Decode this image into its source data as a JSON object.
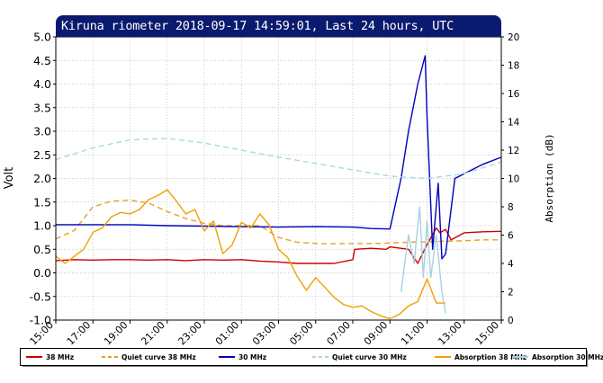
{
  "title": "Kiruna riometer 2018-09-17 14:59:01, Last 24 hours, UTC",
  "chart_data": {
    "type": "line",
    "ylabel": "Volt",
    "ylabel_right": "Absorption (dB)",
    "ylim": [
      -1.0,
      5.0
    ],
    "ylim_right": [
      0,
      20
    ],
    "xlim": [
      15.0,
      39.0
    ],
    "grid": true,
    "y_ticks": [
      "5.0",
      "4.5",
      "4.0",
      "3.5",
      "3.0",
      "2.5",
      "2.0",
      "1.5",
      "1.0",
      "0.5",
      "0.0",
      "-0.5",
      "-1.0"
    ],
    "y_right_ticks": [
      "20",
      "18",
      "16",
      "14",
      "12",
      "10",
      "8",
      "6",
      "4",
      "2",
      "0"
    ],
    "x_ticks": [
      "15:00",
      "17:00",
      "19:00",
      "21:00",
      "23:00",
      "01:00",
      "03:00",
      "05:00",
      "07:00",
      "09:00",
      "11:00",
      "13:00",
      "15:00"
    ],
    "series": [
      {
        "name": "38 MHz",
        "color": "#cc0000",
        "style": "solid",
        "axis": "left",
        "x": [
          15.0,
          16.0,
          17.0,
          18.0,
          19.0,
          20.0,
          21.0,
          22.0,
          23.0,
          24.0,
          25.0,
          26.0,
          27.0,
          28.0,
          29.0,
          30.0,
          31.0,
          31.1,
          32.0,
          32.8,
          33.0,
          34.0,
          34.5,
          35.0,
          35.5,
          35.7,
          36.0,
          36.3,
          37.0,
          38.0,
          39.0
        ],
        "values": [
          0.26,
          0.28,
          0.27,
          0.28,
          0.28,
          0.27,
          0.28,
          0.26,
          0.28,
          0.27,
          0.28,
          0.25,
          0.23,
          0.2,
          0.2,
          0.2,
          0.28,
          0.5,
          0.52,
          0.5,
          0.55,
          0.5,
          0.2,
          0.6,
          0.95,
          0.85,
          0.92,
          0.7,
          0.85,
          0.87,
          0.88
        ]
      },
      {
        "name": "Quiet curve 38 MHz",
        "color": "#e8a020",
        "style": "dashed",
        "axis": "left",
        "x": [
          15.0,
          16.0,
          17.0,
          18.0,
          19.0,
          20.0,
          21.0,
          22.0,
          23.0,
          24.0,
          25.0,
          26.0,
          27.0,
          28.0,
          29.0,
          30.0,
          31.0,
          32.0,
          33.0,
          34.0,
          35.0,
          36.0,
          37.0,
          38.0,
          39.0
        ],
        "values": [
          0.72,
          0.9,
          1.4,
          1.52,
          1.54,
          1.48,
          1.3,
          1.15,
          1.05,
          1.0,
          1.0,
          1.0,
          0.75,
          0.65,
          0.62,
          0.62,
          0.62,
          0.62,
          0.63,
          0.65,
          0.66,
          0.67,
          0.68,
          0.7,
          0.7
        ]
      },
      {
        "name": "30 MHz",
        "color": "#0000bb",
        "style": "solid",
        "axis": "left",
        "x": [
          15.0,
          17.0,
          19.0,
          21.0,
          23.0,
          25.0,
          27.0,
          29.0,
          31.0,
          32.0,
          33.0,
          33.6,
          34.0,
          34.5,
          34.9,
          35.0,
          35.3,
          35.6,
          35.8,
          36.0,
          36.5,
          37.0,
          38.0,
          39.0
        ],
        "values": [
          1.02,
          1.02,
          1.02,
          1.0,
          0.99,
          0.98,
          0.97,
          0.98,
          0.97,
          0.94,
          0.93,
          2.0,
          3.0,
          4.0,
          4.6,
          3.3,
          0.5,
          1.9,
          0.3,
          0.4,
          2.0,
          2.1,
          2.3,
          2.45
        ]
      },
      {
        "name": "Quiet curve 30 MHz",
        "color": "#a8d8e8",
        "style": "dashed",
        "axis": "left",
        "x": [
          15.0,
          17.0,
          19.0,
          21.0,
          23.0,
          25.0,
          27.0,
          29.0,
          31.0,
          33.0,
          35.0,
          37.0,
          39.0
        ],
        "values": [
          2.4,
          2.65,
          2.82,
          2.85,
          2.75,
          2.6,
          2.45,
          2.32,
          2.18,
          2.05,
          2.0,
          2.1,
          2.35
        ]
      },
      {
        "name": "Absorption 38 MHz",
        "color": "#f0a000",
        "style": "solid",
        "axis": "right",
        "x": [
          15.0,
          15.5,
          16.0,
          16.5,
          17.0,
          17.5,
          18.0,
          18.5,
          19.0,
          19.5,
          20.0,
          20.5,
          21.0,
          21.5,
          22.0,
          22.5,
          23.0,
          23.5,
          24.0,
          24.5,
          25.0,
          25.5,
          26.0,
          26.5,
          27.0,
          27.5,
          28.0,
          28.5,
          29.0,
          29.5,
          30.0,
          30.5,
          31.0,
          31.5,
          32.0,
          32.5,
          33.0,
          33.5,
          34.0,
          34.5,
          35.0,
          35.5,
          36.0
        ],
        "values": [
          4.5,
          4.0,
          4.5,
          5.0,
          6.2,
          6.5,
          7.3,
          7.6,
          7.5,
          7.8,
          8.5,
          8.8,
          9.2,
          8.4,
          7.5,
          7.8,
          6.3,
          7.0,
          4.7,
          5.3,
          6.9,
          6.5,
          7.5,
          6.7,
          5.0,
          4.4,
          3.1,
          2.1,
          3.0,
          2.3,
          1.6,
          1.1,
          0.9,
          1.0,
          0.6,
          0.3,
          0.1,
          0.4,
          1.0,
          1.3,
          2.9,
          1.2,
          1.2
        ]
      },
      {
        "name": "Absorption 30 MHz",
        "color": "#a8d0e0",
        "style": "solid",
        "axis": "right",
        "x": [
          33.6,
          34.0,
          34.3,
          34.6,
          34.8,
          35.0,
          35.2,
          35.5,
          35.8,
          36.0
        ],
        "values": [
          2.0,
          6.0,
          4.0,
          8.0,
          3.0,
          7.0,
          3.0,
          6.0,
          2.0,
          0.5
        ]
      }
    ]
  }
}
